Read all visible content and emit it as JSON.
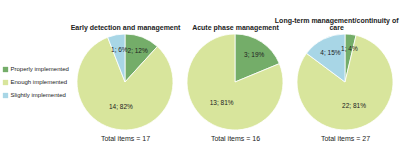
{
  "chart_data": [
    {
      "type": "pie",
      "title": "Early detection and management",
      "categories": [
        "Properly implemented",
        "Enough implemented",
        "Slightly implemented"
      ],
      "values": [
        2,
        14,
        1
      ],
      "value_labels": [
        "2; 12%",
        "14; 82%",
        "1; 6%"
      ],
      "colors": [
        "#74ad69",
        "#d8e59c",
        "#a8d6e6"
      ],
      "data_labels": true,
      "legend": "left",
      "caption": "Total items = 17"
    },
    {
      "type": "pie",
      "title": "Acute phase management",
      "categories": [
        "Properly implemented",
        "Enough implemented"
      ],
      "values": [
        3,
        13
      ],
      "value_labels": [
        "3; 19%",
        "13; 81%"
      ],
      "colors": [
        "#74ad69",
        "#d8e59c"
      ],
      "data_labels": true,
      "caption": "Total items = 16"
    },
    {
      "type": "pie",
      "title": "Long-term management/continuity of care",
      "categories": [
        "Properly implemented",
        "Enough implemented",
        "Slightly implemented"
      ],
      "values": [
        1,
        22,
        4
      ],
      "value_labels": [
        "1; 4%",
        "22; 81%",
        "4; 15%"
      ],
      "colors": [
        "#74ad69",
        "#d8e59c",
        "#a8d6e6"
      ],
      "data_labels": true,
      "caption": "Total items = 27"
    }
  ]
}
